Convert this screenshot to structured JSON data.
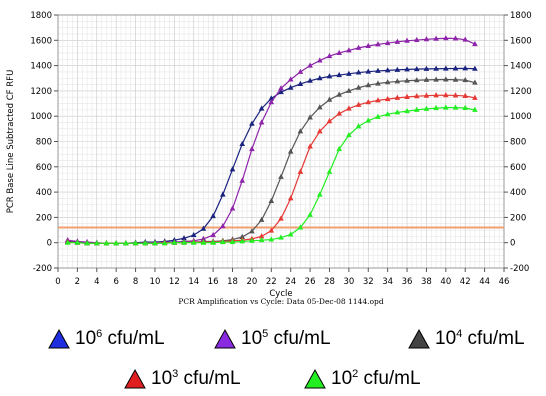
{
  "chart_data": {
    "type": "line",
    "title": "",
    "xlabel": "Cycle",
    "ylabel": "PCR Base Line Subtracted CF RFU",
    "caption": "PCR Amplification vs Cycle: Data 05-Dec-08 1144.opd",
    "xlim": [
      0,
      46
    ],
    "ylim": [
      -200,
      1800
    ],
    "x_ticks": [
      "0",
      "2",
      "4",
      "6",
      "8",
      "10",
      "12",
      "14",
      "16",
      "18",
      "20",
      "22",
      "24",
      "26",
      "28",
      "30",
      "32",
      "34",
      "36",
      "38",
      "40",
      "42",
      "44",
      "46"
    ],
    "y_ticks": [
      "-200",
      "0",
      "200",
      "400",
      "600",
      "800",
      "1000",
      "1200",
      "1400",
      "1600",
      "1800"
    ],
    "grid": true,
    "threshold": {
      "value": 120,
      "color": "#f0a070"
    },
    "x": [
      1,
      2,
      3,
      4,
      5,
      6,
      7,
      8,
      9,
      10,
      11,
      12,
      13,
      14,
      15,
      16,
      17,
      18,
      19,
      20,
      21,
      22,
      23,
      24,
      25,
      26,
      27,
      28,
      29,
      30,
      31,
      32,
      33,
      34,
      35,
      36,
      37,
      38,
      39,
      40,
      41,
      42,
      43
    ],
    "series": [
      {
        "name": "10^6 cfu/mL",
        "color": "#1a237e",
        "values": [
          10,
          5,
          0,
          -5,
          -5,
          -5,
          -5,
          0,
          5,
          5,
          10,
          20,
          35,
          60,
          110,
          210,
          380,
          580,
          780,
          940,
          1060,
          1140,
          1190,
          1225,
          1255,
          1280,
          1300,
          1315,
          1325,
          1335,
          1345,
          1352,
          1358,
          1362,
          1366,
          1370,
          1372,
          1374,
          1375,
          1376,
          1377,
          1378,
          1375
        ]
      },
      {
        "name": "10^5 cfu/mL",
        "color": "#8e24aa",
        "values": [
          20,
          10,
          5,
          0,
          -5,
          -5,
          -5,
          -5,
          0,
          0,
          5,
          5,
          10,
          15,
          30,
          60,
          130,
          270,
          490,
          740,
          950,
          1110,
          1220,
          1290,
          1350,
          1400,
          1440,
          1475,
          1500,
          1520,
          1540,
          1555,
          1568,
          1578,
          1588,
          1596,
          1602,
          1608,
          1612,
          1616,
          1614,
          1605,
          1570
        ]
      },
      {
        "name": "10^4 cfu/mL",
        "color": "#555555",
        "values": [
          5,
          0,
          -5,
          -5,
          -5,
          -5,
          -5,
          -5,
          -5,
          -5,
          0,
          0,
          5,
          5,
          10,
          10,
          15,
          25,
          45,
          90,
          180,
          330,
          520,
          720,
          880,
          990,
          1070,
          1130,
          1170,
          1200,
          1225,
          1245,
          1258,
          1268,
          1275,
          1280,
          1284,
          1287,
          1289,
          1290,
          1288,
          1285,
          1265
        ]
      },
      {
        "name": "10^3 cfu/mL",
        "color": "#e53935",
        "values": [
          5,
          0,
          -5,
          -5,
          -5,
          -5,
          -5,
          -5,
          -5,
          -5,
          0,
          0,
          0,
          5,
          5,
          5,
          10,
          15,
          20,
          30,
          50,
          95,
          190,
          350,
          560,
          760,
          880,
          960,
          1020,
          1060,
          1090,
          1110,
          1125,
          1135,
          1145,
          1152,
          1158,
          1162,
          1165,
          1166,
          1164,
          1160,
          1145
        ]
      },
      {
        "name": "10^2 cfu/mL",
        "color": "#22ee22",
        "values": [
          0,
          0,
          -5,
          -5,
          -5,
          -5,
          -5,
          -5,
          -5,
          -5,
          -5,
          0,
          0,
          0,
          0,
          0,
          5,
          5,
          10,
          15,
          20,
          25,
          40,
          65,
          120,
          220,
          380,
          560,
          740,
          850,
          920,
          965,
          995,
          1015,
          1030,
          1040,
          1050,
          1058,
          1064,
          1068,
          1068,
          1065,
          1050
        ]
      }
    ]
  },
  "legend": [
    {
      "base": "10",
      "exp": "6",
      "unit": " cfu/mL",
      "color": "#1e2fe0"
    },
    {
      "base": "10",
      "exp": "5",
      "unit": " cfu/mL",
      "color": "#8a2be2"
    },
    {
      "base": "10",
      "exp": "4",
      "unit": " cfu/mL",
      "color": "#444444"
    },
    {
      "base": "10",
      "exp": "3",
      "unit": " cfu/mL",
      "color": "#e02020"
    },
    {
      "base": "10",
      "exp": "2",
      "unit": " cfu/mL",
      "color": "#22ee22"
    }
  ]
}
